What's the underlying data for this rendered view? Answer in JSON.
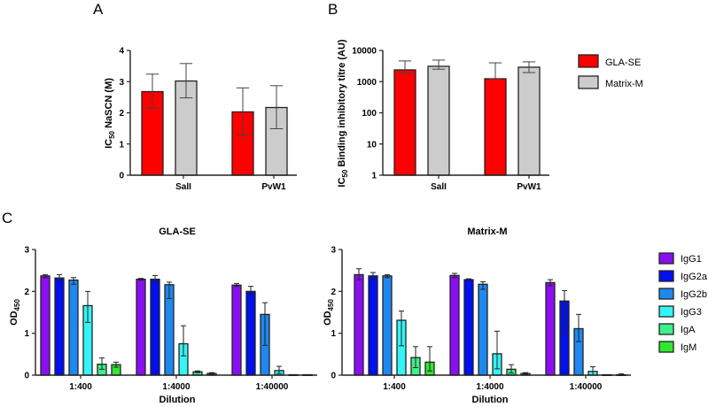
{
  "chart_data": [
    {
      "id": "A",
      "panel_label": "A",
      "type": "bar",
      "title": "",
      "ylabel_main": "IC",
      "ylabel_sub": "50",
      "ylabel_rest": " NaSCN (M)",
      "xlabel": "",
      "yscale": "linear",
      "ylim": [
        0,
        4
      ],
      "yticks": [
        0,
        1,
        2,
        3,
        4
      ],
      "categories": [
        "SalI",
        "PvW1"
      ],
      "series": [
        {
          "name": "GLA-SE",
          "color": "#ff0000",
          "values": [
            2.68,
            2.03
          ],
          "err_low": [
            2.15,
            1.29
          ],
          "err_high": [
            3.24,
            2.8
          ]
        },
        {
          "name": "Matrix-M",
          "color": "#cccccc",
          "values": [
            3.02,
            2.17
          ],
          "err_low": [
            2.48,
            1.49
          ],
          "err_high": [
            3.58,
            2.87
          ]
        }
      ]
    },
    {
      "id": "B",
      "panel_label": "B",
      "type": "bar",
      "title": "",
      "ylabel_main": "IC",
      "ylabel_sub": "50",
      "ylabel_rest": " Binding inhibitory titre (AU)",
      "xlabel": "",
      "yscale": "log",
      "ylim": [
        1,
        10000
      ],
      "yticks": [
        1,
        10,
        100,
        1000,
        10000
      ],
      "categories": [
        "SalI",
        "PvW1"
      ],
      "legend": {
        "placement": "right",
        "entries": [
          "GLA-SE",
          "Matrix-M"
        ]
      },
      "series": [
        {
          "name": "GLA-SE",
          "color": "#ff0000",
          "values": [
            2380,
            1240
          ],
          "err_low": [
            1830,
            1240
          ],
          "err_high": [
            4600,
            4000
          ]
        },
        {
          "name": "Matrix-M",
          "color": "#cccccc",
          "values": [
            3100,
            2900
          ],
          "err_low": [
            2500,
            1950
          ],
          "err_high": [
            4900,
            4300
          ]
        }
      ]
    },
    {
      "id": "C-left",
      "panel_label": "C",
      "type": "bar",
      "title": "GLA-SE",
      "ylabel_main": "OD",
      "ylabel_sub": "450",
      "ylabel_rest": "",
      "xlabel": "Dilution",
      "yscale": "linear",
      "ylim": [
        0,
        3
      ],
      "yticks": [
        0,
        1,
        2,
        3
      ],
      "categories": [
        "1:400",
        "1:4000",
        "1:40000"
      ],
      "series": [
        {
          "name": "IgG1",
          "color": "#8a0ff0",
          "values": [
            2.37,
            2.29,
            2.15
          ],
          "err_low": [
            2.33,
            2.27,
            2.12
          ],
          "err_high": [
            2.4,
            2.31,
            2.19
          ]
        },
        {
          "name": "IgG2a",
          "color": "#0010ee",
          "values": [
            2.32,
            2.29,
            2.0
          ],
          "err_low": [
            2.26,
            2.22,
            1.93
          ],
          "err_high": [
            2.4,
            2.38,
            2.12
          ]
        },
        {
          "name": "IgG2b",
          "color": "#1e88f0",
          "values": [
            2.27,
            2.16,
            1.45
          ],
          "err_low": [
            2.17,
            1.83,
            0.71
          ],
          "err_high": [
            2.33,
            2.22,
            1.73
          ]
        },
        {
          "name": "IgG3",
          "color": "#33f5f5",
          "values": [
            1.66,
            0.75,
            0.11
          ],
          "err_low": [
            1.26,
            0.46,
            0.04
          ],
          "err_high": [
            2.0,
            1.18,
            0.21
          ]
        },
        {
          "name": "IgA",
          "color": "#3cf08a",
          "values": [
            0.26,
            0.08,
            0.01
          ],
          "err_low": [
            0.14,
            0.06,
            0.01
          ],
          "err_high": [
            0.41,
            0.1,
            0.01
          ]
        },
        {
          "name": "IgM",
          "color": "#30e830",
          "values": [
            0.25,
            0.04,
            0.01
          ],
          "err_low": [
            0.19,
            0.02,
            0.01
          ],
          "err_high": [
            0.31,
            0.06,
            0.01
          ]
        }
      ]
    },
    {
      "id": "C-right",
      "panel_label": "",
      "type": "bar",
      "title": "Matrix-M",
      "ylabel_main": "OD",
      "ylabel_sub": "450",
      "ylabel_rest": "",
      "xlabel": "Dilution",
      "yscale": "linear",
      "ylim": [
        0,
        3
      ],
      "yticks": [
        0,
        1,
        2,
        3
      ],
      "categories": [
        "1:400",
        "1:4000",
        "1:40000"
      ],
      "legend": {
        "placement": "right",
        "entries": [
          "IgG1",
          "IgG2a",
          "IgG2b",
          "IgG3",
          "IgA",
          "IgM"
        ]
      },
      "series": [
        {
          "name": "IgG1",
          "color": "#8a0ff0",
          "values": [
            2.4,
            2.38,
            2.21
          ],
          "err_low": [
            2.28,
            2.33,
            2.14
          ],
          "err_high": [
            2.54,
            2.43,
            2.28
          ]
        },
        {
          "name": "IgG2a",
          "color": "#0010ee",
          "values": [
            2.37,
            2.28,
            1.77
          ],
          "err_low": [
            2.3,
            2.27,
            1.0
          ],
          "err_high": [
            2.45,
            2.3,
            2.02
          ]
        },
        {
          "name": "IgG2b",
          "color": "#1e88f0",
          "values": [
            2.37,
            2.17,
            1.11
          ],
          "err_low": [
            2.33,
            2.05,
            0.8
          ],
          "err_high": [
            2.4,
            2.23,
            1.45
          ]
        },
        {
          "name": "IgG3",
          "color": "#33f5f5",
          "values": [
            1.31,
            0.51,
            0.09
          ],
          "err_low": [
            0.7,
            0.15,
            0.0
          ],
          "err_high": [
            1.53,
            1.05,
            0.2
          ]
        },
        {
          "name": "IgA",
          "color": "#3cf08a",
          "values": [
            0.42,
            0.14,
            0.01
          ],
          "err_low": [
            0.18,
            0.05,
            0.01
          ],
          "err_high": [
            0.68,
            0.25,
            0.01
          ]
        },
        {
          "name": "IgM",
          "color": "#30e830",
          "values": [
            0.31,
            0.04,
            0.01
          ],
          "err_low": [
            0.1,
            0.02,
            0.0
          ],
          "err_high": [
            0.68,
            0.06,
            0.03
          ]
        }
      ]
    }
  ]
}
